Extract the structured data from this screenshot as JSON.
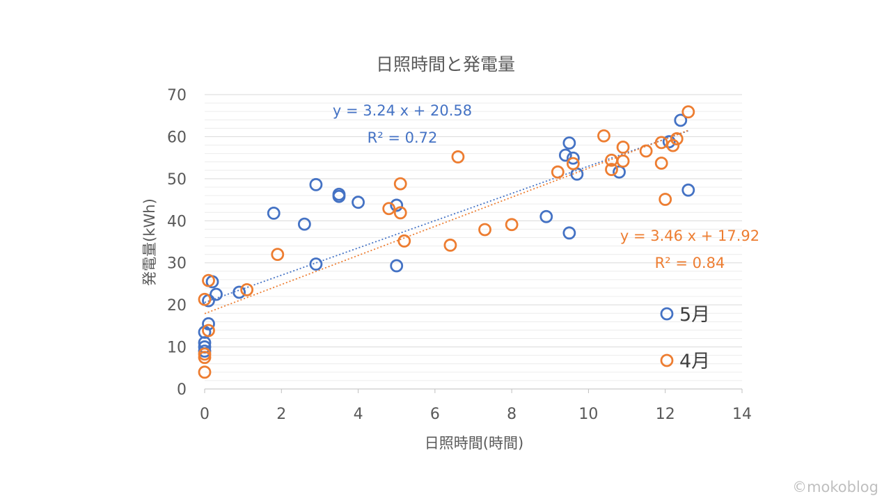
{
  "chart_data": {
    "type": "scatter",
    "title": "日照時間と発電量",
    "xlabel": "日照時間(時間)",
    "ylabel": "発電量(kWh)",
    "xlim": [
      0,
      14
    ],
    "ylim": [
      0,
      70
    ],
    "x_ticks": [
      0,
      2,
      4,
      6,
      8,
      10,
      12,
      14
    ],
    "y_ticks": [
      0,
      10,
      20,
      30,
      40,
      50,
      60,
      70
    ],
    "minor_gridlines": true,
    "legend_position": "right",
    "series": [
      {
        "name": "5月",
        "color": "#4472C4",
        "points": [
          [
            0,
            13.5
          ],
          [
            0,
            11
          ],
          [
            0,
            10
          ],
          [
            0,
            9
          ],
          [
            0.1,
            15.5
          ],
          [
            0.1,
            21
          ],
          [
            0.2,
            25.5
          ],
          [
            0.3,
            22.5
          ],
          [
            0.9,
            23
          ],
          [
            1.8,
            41.8
          ],
          [
            2.6,
            39.2
          ],
          [
            2.9,
            48.6
          ],
          [
            2.9,
            29.7
          ],
          [
            3.5,
            46.3
          ],
          [
            3.5,
            45.8
          ],
          [
            4.0,
            44.4
          ],
          [
            5.0,
            43.7
          ],
          [
            5.0,
            29.3
          ],
          [
            8.9,
            41.0
          ],
          [
            9.4,
            55.6
          ],
          [
            9.5,
            58.5
          ],
          [
            9.5,
            37.1
          ],
          [
            9.6,
            54.9
          ],
          [
            9.7,
            51.1
          ],
          [
            10.8,
            51.6
          ],
          [
            12.1,
            58.8
          ],
          [
            12.4,
            63.9
          ],
          [
            12.6,
            47.3
          ]
        ],
        "trendline": {
          "slope": 3.24,
          "intercept": 20.58,
          "x_range": [
            0,
            12.6
          ],
          "equation": "y = 3.24 x + 20.58",
          "r2": "R² = 0.72"
        }
      },
      {
        "name": "4月",
        "color": "#ED7D31",
        "points": [
          [
            0,
            4
          ],
          [
            0,
            7.5
          ],
          [
            0,
            8.3
          ],
          [
            0,
            21.3
          ],
          [
            0.1,
            13.9
          ],
          [
            0.1,
            25.8
          ],
          [
            1.1,
            23.6
          ],
          [
            1.9,
            32.0
          ],
          [
            4.8,
            42.9
          ],
          [
            5.1,
            48.8
          ],
          [
            5.1,
            41.9
          ],
          [
            5.2,
            35.2
          ],
          [
            6.4,
            34.2
          ],
          [
            6.6,
            55.2
          ],
          [
            7.3,
            37.9
          ],
          [
            8.0,
            39.1
          ],
          [
            9.2,
            51.6
          ],
          [
            9.6,
            53.6
          ],
          [
            10.4,
            60.2
          ],
          [
            10.6,
            54.4
          ],
          [
            10.6,
            52.2
          ],
          [
            10.9,
            57.5
          ],
          [
            10.9,
            54.2
          ],
          [
            11.5,
            56.6
          ],
          [
            11.9,
            58.6
          ],
          [
            11.9,
            53.7
          ],
          [
            12.0,
            45.1
          ],
          [
            12.2,
            57.9
          ],
          [
            12.3,
            59.5
          ],
          [
            12.6,
            65.9
          ]
        ],
        "trendline": {
          "slope": 3.46,
          "intercept": 17.92,
          "x_range": [
            0,
            12.6
          ],
          "equation": "y = 3.46 x + 17.92",
          "r2": "R² = 0.84"
        }
      }
    ]
  },
  "watermark": "©mokoblog"
}
